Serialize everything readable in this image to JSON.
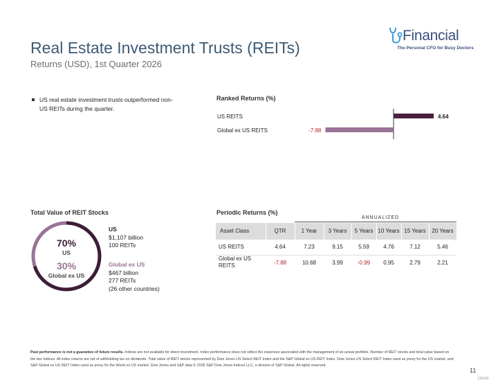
{
  "brand": {
    "name": "Financial",
    "tagline": "The Personal CFO for Busy Doctors",
    "accent": "#3b4e7c"
  },
  "header": {
    "title": "Real Estate Investment Trusts (REITs)",
    "subtitle": "Returns (USD), 1st Quarter 2026"
  },
  "summary": {
    "bullet": "US real estate investment trusts outperformed non-US REITs during the quarter."
  },
  "total_value": {
    "heading": "Total Value of REIT Stocks",
    "us": {
      "pct": "70%",
      "label": "US",
      "name": "US",
      "value": "$1,107 billion",
      "count": "100 REITs"
    },
    "global": {
      "pct": "30%",
      "label": "Global ex US",
      "name": "Global ex US",
      "value": "$467 billion",
      "count": "277 REITs",
      "note": "(26 other countries)"
    }
  },
  "periodic": {
    "heading": "Periodic Returns (%)",
    "annualized_label": "ANNUALIZED",
    "headers": [
      "Asset Class",
      "QTR",
      "1 Year",
      "3 Years",
      "5 Years",
      "10 Years",
      "15 Years",
      "20 Years"
    ],
    "rows": [
      {
        "name": "US REITS",
        "values": [
          "4.64",
          "7.23",
          "9.15",
          "5.59",
          "4.76",
          "7.12",
          "5.46"
        ]
      },
      {
        "name": "Global ex US REITS",
        "values": [
          "-7.88",
          "10.68",
          "3.99",
          "-0.99",
          "0.95",
          "2.79",
          "2.21"
        ]
      }
    ]
  },
  "ranked_heading": "Ranked Returns (%)",
  "chart_data": [
    {
      "type": "bar",
      "orientation": "horizontal",
      "title": "Ranked Returns (%)",
      "categories": [
        "US REITS",
        "Global ex US REITS"
      ],
      "values": [
        4.64,
        -7.88
      ],
      "value_labels": [
        "4.64",
        "-7.88"
      ],
      "colors": [
        "#4a2040",
        "#9a7396"
      ],
      "xlim": [
        -10,
        10
      ]
    },
    {
      "type": "pie",
      "subtype": "donut",
      "title": "Total Value of REIT Stocks",
      "labels": [
        "US",
        "Global ex US"
      ],
      "values": [
        70,
        30
      ],
      "colors": [
        "#3d1d37",
        "#9a7396"
      ]
    }
  ],
  "footer": {
    "bold": "Past performance is not a guarantee of future results.",
    "text": "Indices are not available for direct investment. Index performance does not reflect the expenses associated with the management of an actual portfolio. Number of REIT stocks and total value based on the two indices. All index returns are net of withholding tax on dividends. Total value of REIT stocks represented by Dow Jones US Select REIT Index and the S&P Global ex US REIT Index. Dow Jones US Select REIT Index used as proxy for the US market, and S&P Global ex US REIT Index used as proxy for the World ex US market. Dow Jones and S&P data © 2026 S&P Dow Jones Indices LLC, a division of S&P Global. All rights reserved.",
    "page": "11",
    "code": "135204"
  }
}
